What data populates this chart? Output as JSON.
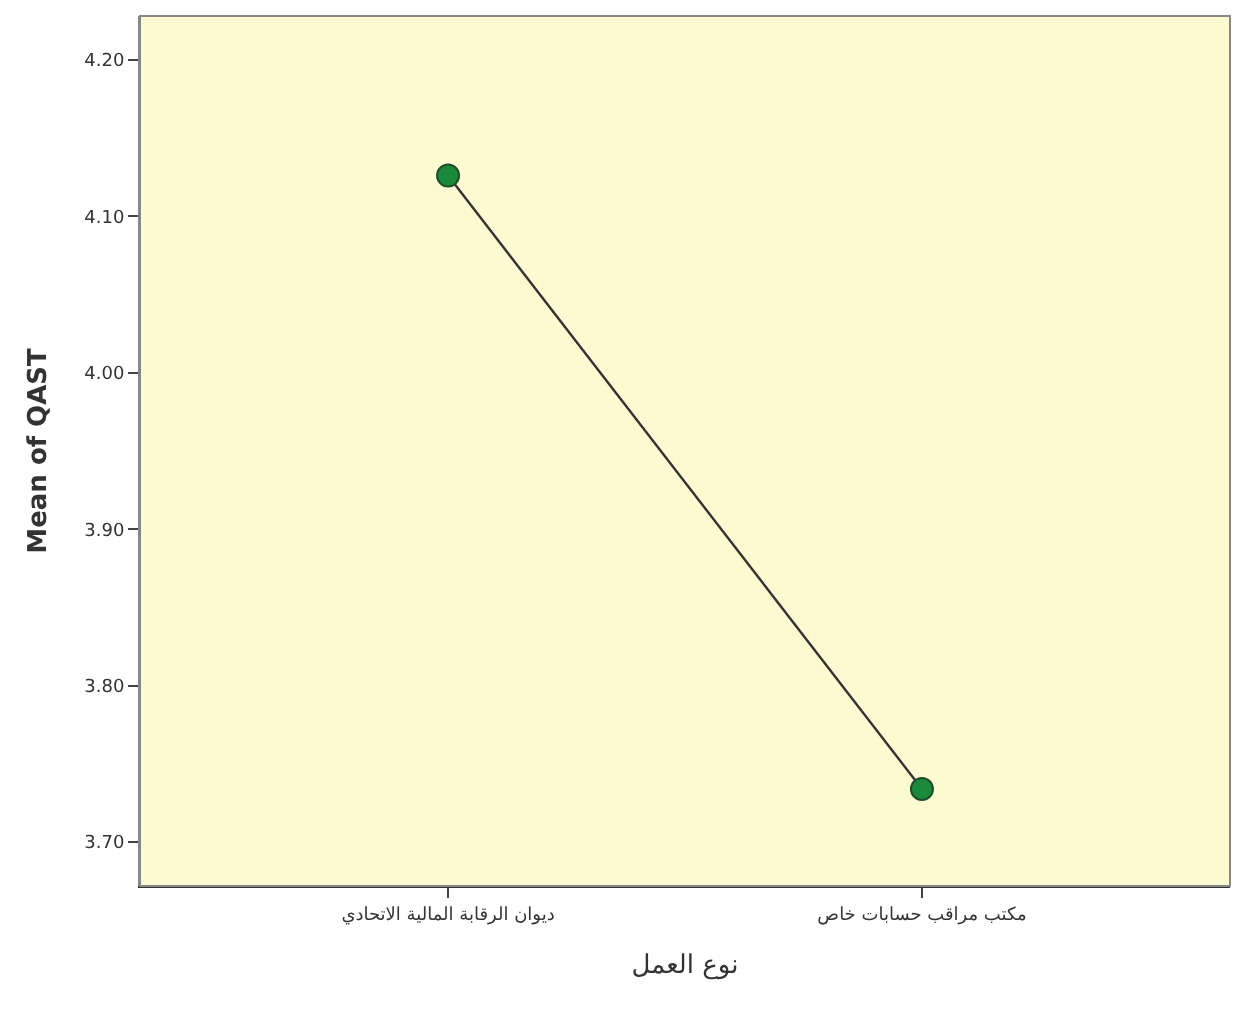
{
  "chart_data": {
    "type": "line",
    "xlabel": "نوع العمل",
    "ylabel": "Mean of QAST",
    "categories": [
      "ديوان الرقابة المالية الاتحادي",
      "مكتب مراقب حسابات خاص"
    ],
    "series": [
      {
        "color": "#1a8a3a",
        "values": [
          4.126,
          3.734
        ]
      }
    ],
    "ylim": [
      3.672,
      4.228
    ],
    "yticks": [
      {
        "value": 3.7,
        "label": "3.70"
      },
      {
        "value": 3.8,
        "label": "3.80"
      },
      {
        "value": 3.9,
        "label": "3.90"
      },
      {
        "value": 4.0,
        "label": "4.00"
      },
      {
        "value": 4.1,
        "label": "4.10"
      },
      {
        "value": 4.2,
        "label": "4.20"
      }
    ],
    "marker": "circle",
    "line_style": "solid",
    "grid": false
  }
}
